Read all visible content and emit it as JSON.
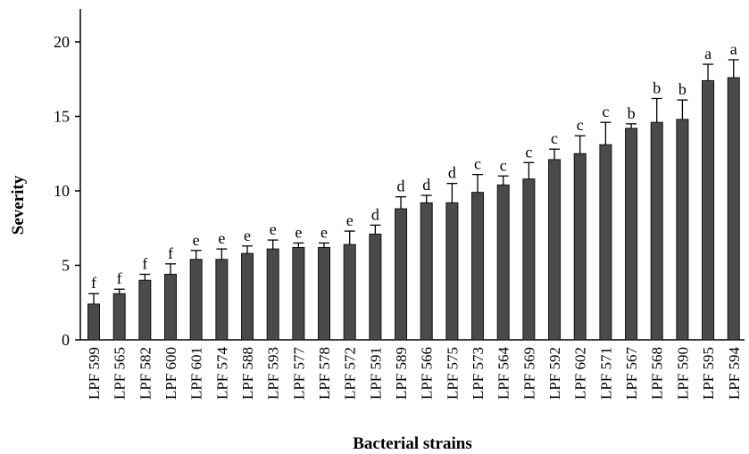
{
  "chart_data": {
    "type": "bar",
    "title": "",
    "xlabel": "Bacterial strains",
    "ylabel": "Severity",
    "ylim": [
      0,
      20
    ],
    "yticks": [
      0,
      5,
      10,
      15,
      20
    ],
    "grid": false,
    "legend": "none",
    "bar_color": "#4a4a4a",
    "categories": [
      "LPF 599",
      "LPF 565",
      "LPF 582",
      "LPF 600",
      "LPF 601",
      "LPF 574",
      "LPF 588",
      "LPF 593",
      "LPF 577",
      "LPF 578",
      "LPF 572",
      "LPF 591",
      "LPF 589",
      "LPF 566",
      "LPF 575",
      "LPF 573",
      "LPF 564",
      "LPF 569",
      "LPF 592",
      "LPF 602",
      "LPF 571",
      "LPF 567",
      "LPF 568",
      "LPF 590",
      "LPF 595",
      "LPF 594"
    ],
    "values": [
      2.4,
      3.1,
      4.0,
      4.4,
      5.4,
      5.4,
      5.8,
      6.1,
      6.2,
      6.2,
      6.4,
      7.1,
      8.8,
      9.2,
      9.2,
      9.9,
      10.4,
      10.8,
      12.1,
      12.5,
      13.1,
      14.2,
      14.6,
      14.8,
      17.4,
      17.6
    ],
    "errors": [
      0.7,
      0.3,
      0.4,
      0.7,
      0.6,
      0.7,
      0.5,
      0.6,
      0.3,
      0.3,
      0.9,
      0.6,
      0.8,
      0.5,
      1.3,
      1.2,
      0.6,
      1.1,
      0.7,
      1.2,
      1.5,
      0.3,
      1.6,
      1.3,
      1.1,
      1.2
    ],
    "significance_letters": [
      "f",
      "f",
      "f",
      "f",
      "e",
      "e",
      "e",
      "e",
      "e",
      "e",
      "e",
      "d",
      "d",
      "d",
      "d",
      "c",
      "c",
      "c",
      "c",
      "c",
      "c",
      "b",
      "b",
      "b",
      "a",
      "a"
    ]
  }
}
